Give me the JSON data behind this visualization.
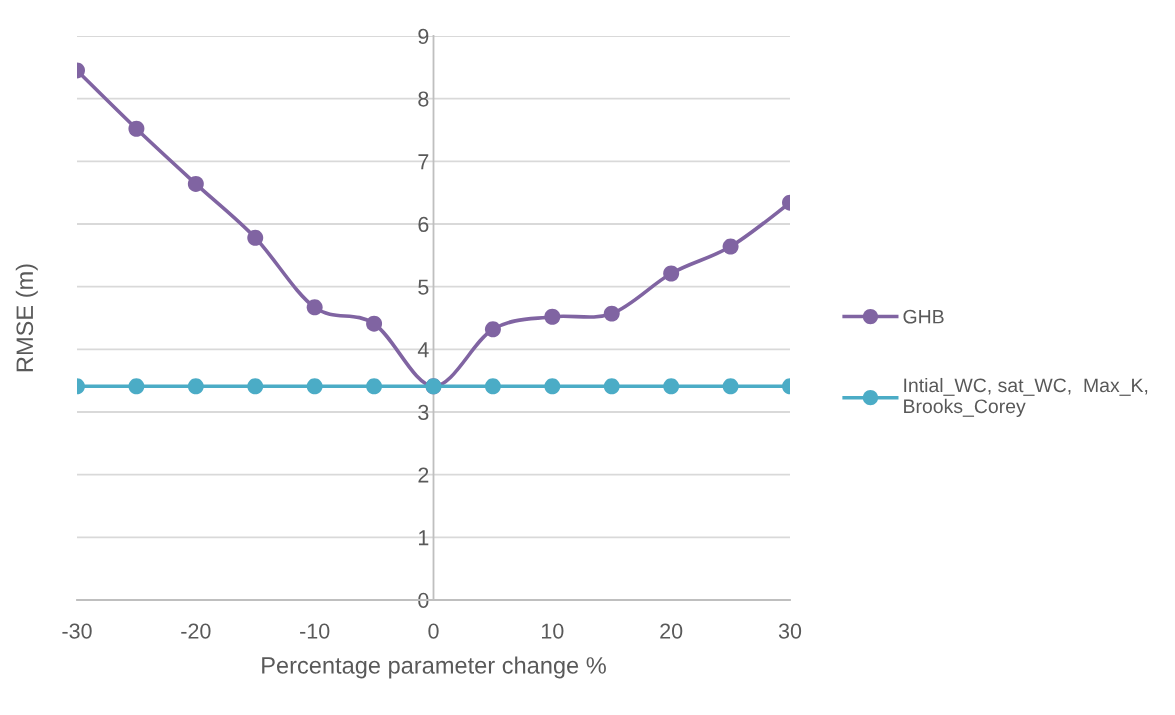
{
  "chart_data": {
    "type": "line",
    "xlabel": "Percentage parameter change %",
    "ylabel": "RMSE (m)",
    "x": [
      -30,
      -25,
      -20,
      -15,
      -10,
      -5,
      0,
      5,
      10,
      15,
      20,
      25,
      30
    ],
    "series": [
      {
        "name": "GHB",
        "color": "#8064a2",
        "values": [
          8.45,
          7.52,
          6.64,
          5.78,
          4.67,
          4.41,
          3.41,
          4.32,
          4.52,
          4.57,
          5.21,
          5.64,
          6.34
        ]
      },
      {
        "name": "Intial_WC, sat_WC,  Max_K,\nBrooks_Corey",
        "color": "#4bacc6",
        "values": [
          3.41,
          3.41,
          3.41,
          3.41,
          3.41,
          3.41,
          3.41,
          3.41,
          3.41,
          3.41,
          3.41,
          3.41,
          3.41
        ]
      }
    ],
    "xlim": [
      -30,
      30
    ],
    "ylim": [
      0,
      9
    ],
    "xticks": [
      -30,
      -20,
      -10,
      0,
      10,
      20,
      30
    ],
    "yticks": [
      0,
      1,
      2,
      3,
      4,
      5,
      6,
      7,
      8,
      9
    ],
    "grid": "y",
    "legend": "right",
    "marker": "circle",
    "line_style": "solid"
  }
}
